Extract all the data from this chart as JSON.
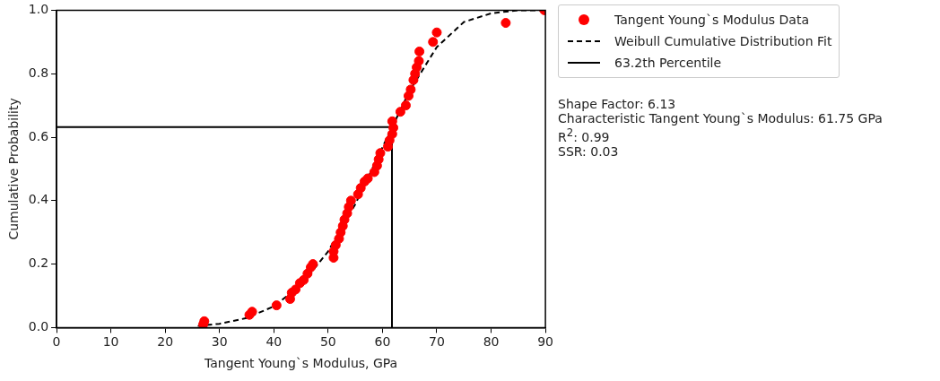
{
  "chart_data": {
    "type": "scatter",
    "xlabel": "Tangent Young`s Modulus, GPa",
    "ylabel": "Cumulative Probability",
    "xlim": [
      0,
      90
    ],
    "xticks": [
      0,
      10,
      20,
      30,
      40,
      50,
      60,
      70,
      80,
      90
    ],
    "ylim": [
      0,
      1
    ],
    "yticks": [
      {
        "value": 0,
        "label": "0.0"
      },
      0.2,
      0.4,
      0.6,
      0.8,
      {
        "value": 1,
        "label": "1.0"
      }
    ],
    "legend": "right",
    "grid": false,
    "series": [
      {
        "name": "Tangent Young`s Modulus Data",
        "color": "#ff0000",
        "marker": "circle",
        "x": [
          27,
          27.2,
          35.5,
          36,
          40.5,
          43,
          43.3,
          44,
          44.8,
          45.5,
          46.2,
          46.8,
          47.2,
          51,
          51,
          51.4,
          52,
          52.3,
          52.7,
          53,
          53.5,
          53.8,
          54.2,
          55.5,
          56,
          56.7,
          57.3,
          58.5,
          59,
          59.3,
          59.6,
          61,
          61.3,
          61.8,
          62,
          61.8,
          63.3,
          64.3,
          64.8,
          65.2,
          65.7,
          66,
          66.3,
          66.7,
          66.8,
          69.3,
          70,
          82.7,
          89.8
        ],
        "values": [
          0.01,
          0.02,
          0.04,
          0.05,
          0.07,
          0.09,
          0.11,
          0.12,
          0.14,
          0.15,
          0.17,
          0.19,
          0.2,
          0.22,
          0.24,
          0.26,
          0.28,
          0.3,
          0.32,
          0.34,
          0.36,
          0.38,
          0.4,
          0.42,
          0.44,
          0.46,
          0.47,
          0.49,
          0.51,
          0.53,
          0.55,
          0.57,
          0.59,
          0.61,
          0.63,
          0.65,
          0.68,
          0.7,
          0.73,
          0.75,
          0.78,
          0.8,
          0.82,
          0.84,
          0.87,
          0.9,
          0.93,
          0.96,
          1.0
        ]
      },
      {
        "name": "Weibull Cumulative Distribution Fit",
        "type": "line",
        "color": "#000000",
        "line_style": "dashed",
        "marker": "none",
        "x": [
          26,
          30,
          35,
          40,
          45,
          50,
          55,
          60,
          65,
          70,
          75,
          80,
          85,
          90
        ],
        "values": [
          0.005,
          0.012,
          0.03,
          0.067,
          0.134,
          0.24,
          0.389,
          0.568,
          0.746,
          0.884,
          0.963,
          0.99,
          1.0,
          1.0
        ]
      },
      {
        "name": "63.2th Percentile",
        "type": "line",
        "color": "#000000",
        "line_style": "solid",
        "marker": "none",
        "x": [
          0,
          61.75,
          61.75
        ],
        "values": [
          0.632,
          0.632,
          0
        ]
      }
    ],
    "annotations": [
      "Shape Factor: 6.13",
      "Characteristic Tangent Young`s Modulus: 61.75 GPa",
      "R$^{2}$: 0.99",
      "SSR: 0.03"
    ]
  }
}
